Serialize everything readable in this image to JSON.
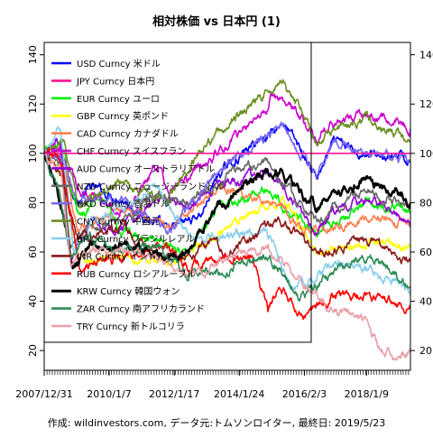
{
  "chart_data": {
    "type": "line",
    "title": "相対株価 vs 日本円 (1)",
    "caption": "作成: wildinvestors.com, データ元:トムソンロイター, 最終日: 2019/5/23",
    "x_start": "2007-12-31",
    "x_end": "2019-05-23",
    "x_ticks": [
      "2007/12/31",
      "2010/1/7",
      "2012/1/17",
      "2014/1/24",
      "2016/2/3",
      "2018/1/9"
    ],
    "ylim": [
      12,
      145
    ],
    "y_ticks": [
      20,
      40,
      60,
      80,
      100,
      120,
      140
    ],
    "reference_line": 100,
    "grid": false,
    "legend_position": "top-left",
    "series": [
      {
        "name": "USD Curncy 米ドル",
        "color": "#0000ff",
        "dates": [
          "2007-12-31",
          "2008-08-01",
          "2009-01-15",
          "2009-06-01",
          "2010-06-01",
          "2011-10-31",
          "2012-12-01",
          "2013-05-20",
          "2014-12-05",
          "2015-06-05",
          "2016-06-24",
          "2017-01-02",
          "2018-01-01",
          "2019-05-23"
        ],
        "values": [
          100,
          96,
          80,
          86,
          82,
          68,
          76,
          91,
          108,
          113,
          90,
          104,
          100,
          97
        ]
      },
      {
        "name": "JPY Curncy 日本円",
        "color": "#ff1493",
        "dates": [
          "2007-12-31",
          "2019-05-23"
        ],
        "values": [
          100,
          100
        ]
      },
      {
        "name": "EUR Curncy ユーロ",
        "color": "#00ee00",
        "dates": [
          "2007-12-31",
          "2008-07-01",
          "2009-01-15",
          "2009-12-01",
          "2010-06-01",
          "2011-10-31",
          "2012-07-01",
          "2013-05-20",
          "2014-12-05",
          "2015-06-05",
          "2016-06-24",
          "2017-01-02",
          "2018-01-25",
          "2019-05-23"
        ],
        "values": [
          100,
          104,
          76,
          82,
          68,
          64,
          60,
          77,
          86,
          79,
          68,
          72,
          80,
          76
        ]
      },
      {
        "name": "GBP Curncy 英ポンド",
        "color": "#ffff00",
        "dates": [
          "2007-12-31",
          "2008-07-01",
          "2009-01-15",
          "2010-06-01",
          "2011-10-31",
          "2013-05-20",
          "2014-12-05",
          "2015-06-05",
          "2016-06-24",
          "2017-01-02",
          "2018-04-01",
          "2019-05-23"
        ],
        "values": [
          100,
          92,
          58,
          58,
          56,
          66,
          79,
          83,
          60,
          62,
          65,
          62
        ]
      },
      {
        "name": "CAD Curncy カナダドル",
        "color": "#ff7f50",
        "dates": [
          "2007-12-31",
          "2008-08-01",
          "2009-01-15",
          "2010-06-01",
          "2011-10-31",
          "2013-05-20",
          "2014-12-05",
          "2015-06-05",
          "2016-02-01",
          "2017-01-02",
          "2018-01-01",
          "2019-05-23"
        ],
        "values": [
          100,
          98,
          70,
          78,
          70,
          86,
          82,
          79,
          67,
          70,
          73,
          71
        ]
      },
      {
        "name": "CHF Curncy スイスフラン",
        "color": "#cc00cc",
        "dates": [
          "2007-12-31",
          "2008-07-01",
          "2009-01-15",
          "2010-06-01",
          "2011-08-01",
          "2011-10-31",
          "2013-05-20",
          "2014-12-05",
          "2015-01-20",
          "2016-06-24",
          "2017-01-02",
          "2018-01-01",
          "2019-05-23"
        ],
        "values": [
          100,
          102,
          86,
          76,
          96,
          84,
          100,
          118,
          125,
          108,
          112,
          115,
          110
        ]
      },
      {
        "name": "AUD Curncy オーストラリアドル",
        "color": "#9400d3",
        "dates": [
          "2007-12-31",
          "2008-07-01",
          "2008-10-27",
          "2009-06-01",
          "2010-06-01",
          "2011-07-01",
          "2012-07-01",
          "2013-05-20",
          "2014-12-05",
          "2015-06-05",
          "2016-06-24",
          "2017-01-02",
          "2018-01-25",
          "2019-05-23"
        ],
        "values": [
          100,
          104,
          56,
          70,
          70,
          82,
          80,
          88,
          92,
          86,
          68,
          76,
          82,
          70
        ]
      },
      {
        "name": "NZD Curncy ニュージーランドドル",
        "color": "#696969",
        "dates": [
          "2007-12-31",
          "2008-07-01",
          "2008-10-27",
          "2009-06-01",
          "2010-06-01",
          "2011-07-01",
          "2012-07-01",
          "2013-05-20",
          "2014-12-05",
          "2015-06-05",
          "2016-06-24",
          "2017-01-02",
          "2018-01-25",
          "2019-05-23"
        ],
        "values": [
          100,
          96,
          60,
          70,
          72,
          84,
          78,
          90,
          98,
          88,
          72,
          78,
          85,
          78
        ]
      },
      {
        "name": "HKD Curncy 香港ドル",
        "color": "#7b68ee",
        "dates": [
          "2007-12-31",
          "2008-08-01",
          "2009-01-15",
          "2010-06-01",
          "2011-10-31",
          "2013-05-20",
          "2014-12-05",
          "2015-06-05",
          "2016-06-24",
          "2017-01-02",
          "2018-01-01",
          "2019-05-23"
        ],
        "values": [
          100,
          96,
          80,
          82,
          68,
          92,
          108,
          113,
          90,
          104,
          100,
          97
        ]
      },
      {
        "name": "CNY Curncy 中国元",
        "color": "#6b8e23",
        "dates": [
          "2007-12-31",
          "2008-08-01",
          "2009-01-15",
          "2010-06-01",
          "2011-10-31",
          "2013-05-20",
          "2014-12-05",
          "2015-06-05",
          "2016-06-24",
          "2017-01-02",
          "2018-01-01",
          "2019-05-23"
        ],
        "values": [
          100,
          104,
          80,
          88,
          82,
          108,
          125,
          130,
          104,
          110,
          114,
          105
        ]
      },
      {
        "name": "BRL Curncy ブラジルレアル",
        "color": "#87ceeb",
        "dates": [
          "2007-12-31",
          "2008-07-01",
          "2008-12-01",
          "2009-06-01",
          "2010-06-01",
          "2011-07-01",
          "2012-07-01",
          "2013-05-20",
          "2014-12-05",
          "2015-09-30",
          "2016-06-24",
          "2017-01-02",
          "2018-01-01",
          "2019-05-23"
        ],
        "values": [
          100,
          112,
          60,
          72,
          78,
          86,
          66,
          66,
          68,
          46,
          50,
          56,
          54,
          45
        ]
      },
      {
        "name": "INR Curncy インドルピー",
        "color": "#8b1a1a",
        "dates": [
          "2007-12-31",
          "2008-08-01",
          "2009-01-15",
          "2010-06-01",
          "2011-10-31",
          "2013-05-20",
          "2013-08-30",
          "2014-12-05",
          "2015-06-05",
          "2016-06-24",
          "2017-01-02",
          "2018-01-01",
          "2019-05-23"
        ],
        "values": [
          100,
          88,
          66,
          70,
          56,
          64,
          58,
          70,
          72,
          60,
          62,
          66,
          56
        ]
      },
      {
        "name": "RUB Curncy ロシアルーブル",
        "color": "#ff0000",
        "dates": [
          "2007-12-31",
          "2008-08-01",
          "2009-02-01",
          "2010-06-01",
          "2011-07-01",
          "2012-07-01",
          "2013-05-20",
          "2014-07-01",
          "2014-12-16",
          "2015-05-01",
          "2016-01-20",
          "2017-01-02",
          "2018-01-01",
          "2019-05-23"
        ],
        "values": [
          100,
          96,
          54,
          58,
          62,
          54,
          58,
          58,
          36,
          46,
          34,
          42,
          42,
          37
        ]
      },
      {
        "name": "KRW Curncy 韓国ウォン",
        "color": "#000000",
        "dates": [
          "2007-12-31",
          "2008-07-01",
          "2008-11-20",
          "2009-06-01",
          "2010-06-01",
          "2011-10-31",
          "2012-07-01",
          "2013-05-20",
          "2014-12-05",
          "2015-06-05",
          "2016-06-24",
          "2017-01-02",
          "2018-01-25",
          "2019-05-23"
        ],
        "values": [
          100,
          80,
          52,
          62,
          64,
          58,
          60,
          78,
          92,
          92,
          78,
          84,
          90,
          80
        ]
      },
      {
        "name": "ZAR Curncy 南アフリカランド",
        "color": "#2e8b57",
        "dates": [
          "2007-12-31",
          "2008-07-01",
          "2008-10-27",
          "2009-06-01",
          "2010-06-01",
          "2011-07-01",
          "2012-07-01",
          "2013-05-20",
          "2014-12-05",
          "2015-12-10",
          "2016-06-24",
          "2017-01-02",
          "2018-02-01",
          "2019-05-23"
        ],
        "values": [
          100,
          82,
          58,
          66,
          62,
          62,
          50,
          52,
          58,
          42,
          46,
          52,
          58,
          46
        ]
      },
      {
        "name": "TRY Curncy 新トルコリラ",
        "color": "#e8a0a8",
        "dates": [
          "2007-12-31",
          "2008-07-01",
          "2008-10-27",
          "2009-06-01",
          "2010-06-01",
          "2011-07-01",
          "2012-07-01",
          "2013-05-20",
          "2014-12-05",
          "2015-06-05",
          "2016-06-24",
          "2017-01-02",
          "2018-01-01",
          "2018-08-13",
          "2019-05-23"
        ],
        "values": [
          100,
          94,
          56,
          62,
          60,
          58,
          50,
          56,
          62,
          56,
          42,
          36,
          32,
          18,
          19
        ]
      }
    ]
  }
}
